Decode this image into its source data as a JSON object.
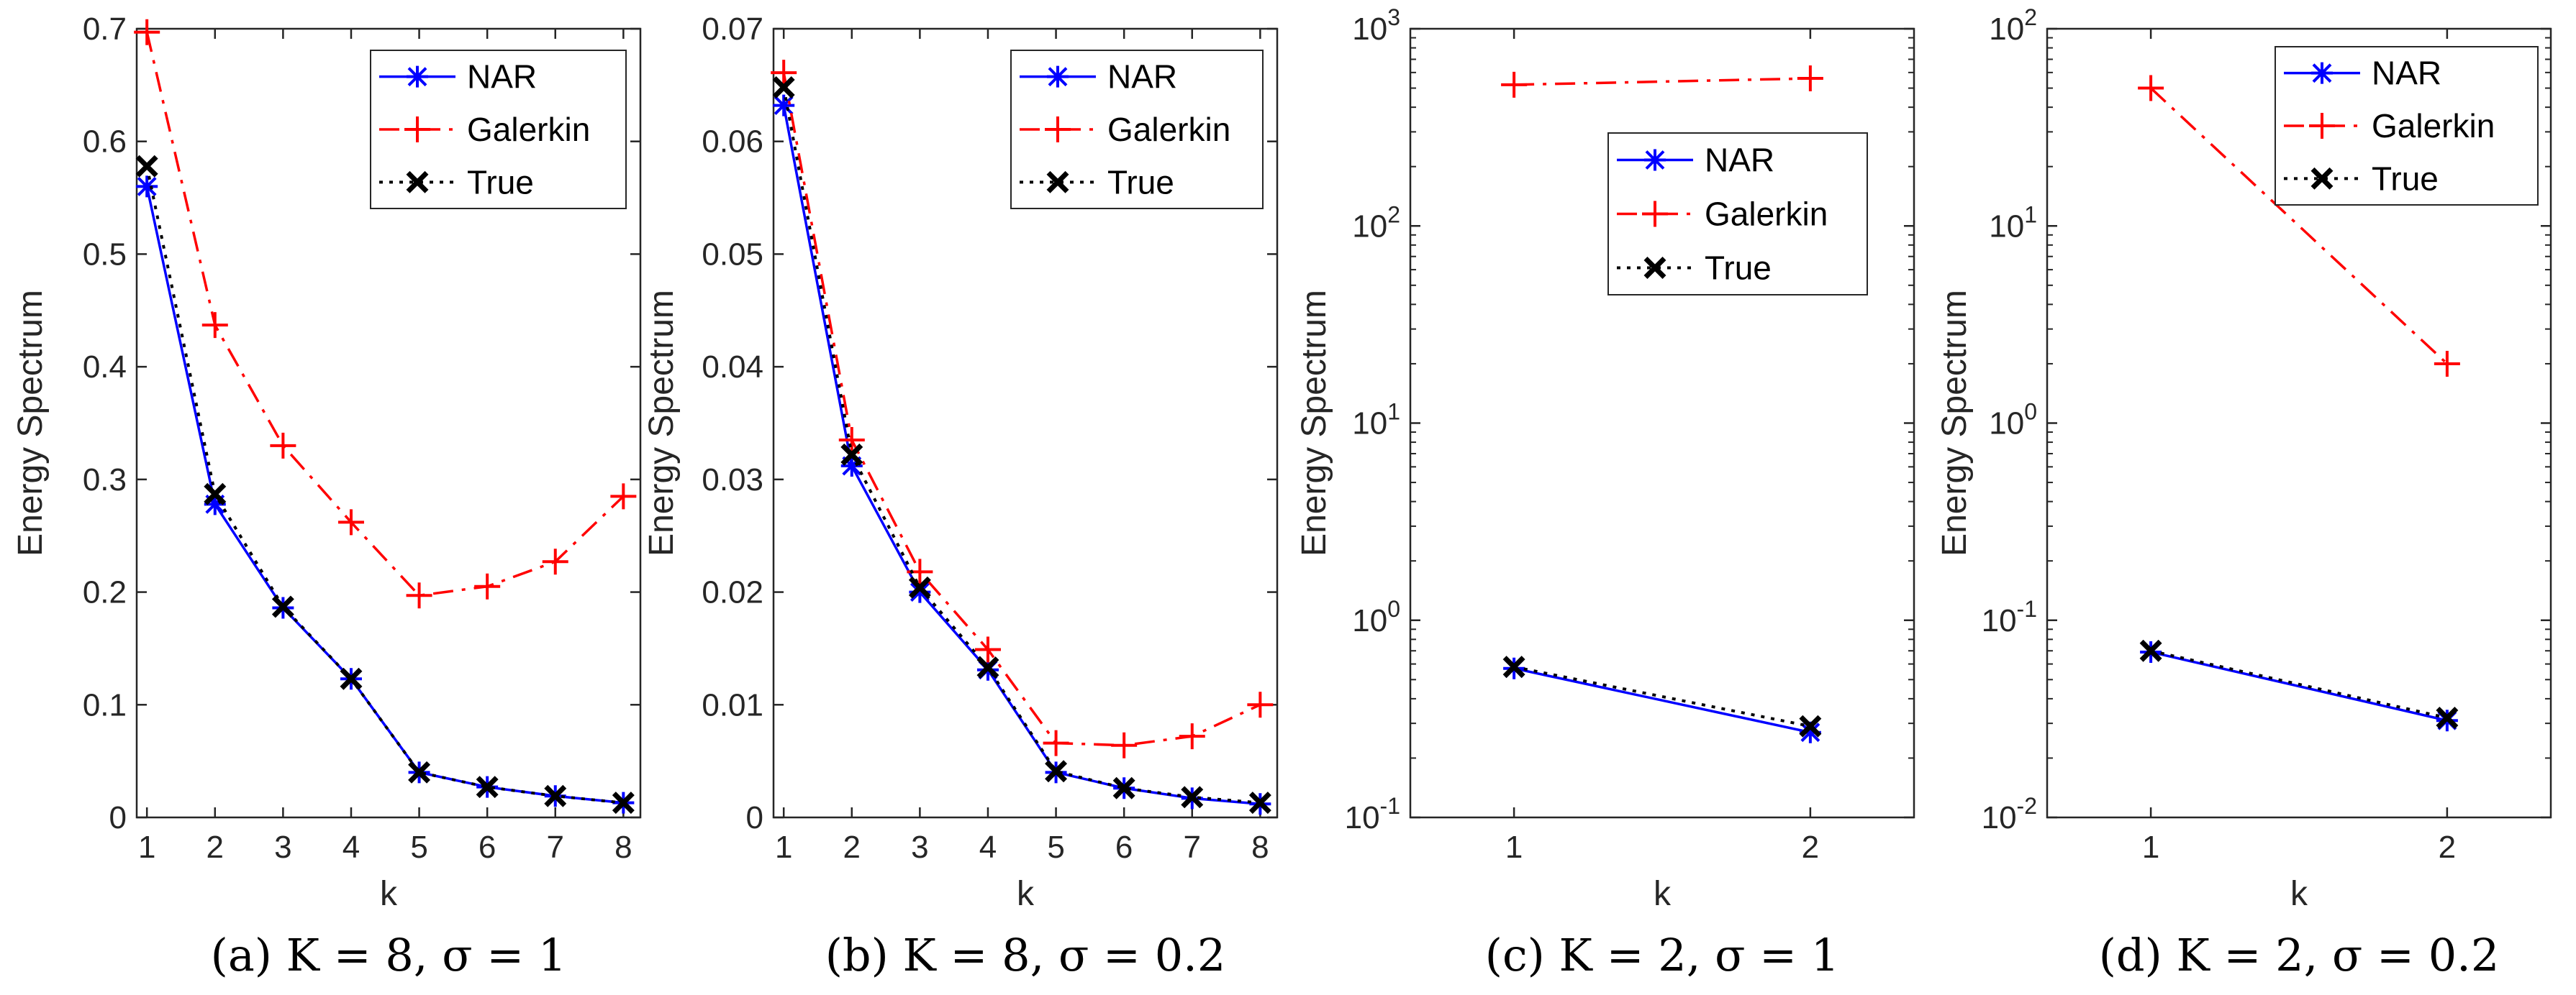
{
  "chart_data": [
    {
      "type": "line",
      "caption": "(a) K = 8, σ = 1",
      "xlabel": "k",
      "ylabel": "Energy Spectrum",
      "yscale": "linear",
      "xlim": [
        0.85,
        8.25
      ],
      "ylim": [
        0,
        0.7
      ],
      "xticks": [
        1,
        2,
        3,
        4,
        5,
        6,
        7,
        8
      ],
      "xtick_labels": [
        "1",
        "2",
        "3",
        "4",
        "5",
        "6",
        "7",
        "8"
      ],
      "yticks": [
        0,
        0.1,
        0.2,
        0.3,
        0.4,
        0.5,
        0.6,
        0.7
      ],
      "ytick_labels": [
        "0",
        "0.1",
        "0.2",
        "0.3",
        "0.4",
        "0.5",
        "0.6",
        "0.7"
      ],
      "legend_position": "top-right",
      "x": [
        1,
        2,
        3,
        4,
        5,
        6,
        7,
        8
      ],
      "series": [
        {
          "name": "NAR",
          "color": "#0000ff",
          "line": "solid",
          "marker": "asterisk",
          "values": [
            0.56,
            0.278,
            0.186,
            0.123,
            0.04,
            0.027,
            0.019,
            0.013
          ]
        },
        {
          "name": "Galerkin",
          "color": "#ff0000",
          "line": "dashdot",
          "marker": "plus",
          "values": [
            0.697,
            0.437,
            0.33,
            0.262,
            0.197,
            0.205,
            0.227,
            0.285
          ]
        },
        {
          "name": "True",
          "color": "#000000",
          "line": "dotted",
          "marker": "cross",
          "values": [
            0.578,
            0.287,
            0.187,
            0.123,
            0.04,
            0.027,
            0.019,
            0.013
          ]
        }
      ]
    },
    {
      "type": "line",
      "caption": "(b) K = 8, σ = 0.2",
      "xlabel": "k",
      "ylabel": "Energy Spectrum",
      "yscale": "linear",
      "xlim": [
        0.85,
        8.25
      ],
      "ylim": [
        0,
        0.07
      ],
      "xticks": [
        1,
        2,
        3,
        4,
        5,
        6,
        7,
        8
      ],
      "xtick_labels": [
        "1",
        "2",
        "3",
        "4",
        "5",
        "6",
        "7",
        "8"
      ],
      "yticks": [
        0,
        0.01,
        0.02,
        0.03,
        0.04,
        0.05,
        0.06,
        0.07
      ],
      "ytick_labels": [
        "0",
        "0.01",
        "0.02",
        "0.03",
        "0.04",
        "0.05",
        "0.06",
        "0.07"
      ],
      "legend_position": "top-right",
      "x": [
        1,
        2,
        3,
        4,
        5,
        6,
        7,
        8
      ],
      "series": [
        {
          "name": "NAR",
          "color": "#0000ff",
          "line": "solid",
          "marker": "asterisk",
          "values": [
            0.0632,
            0.0312,
            0.02,
            0.0131,
            0.004,
            0.0026,
            0.0017,
            0.0012
          ]
        },
        {
          "name": "Galerkin",
          "color": "#ff0000",
          "line": "dashdot",
          "marker": "plus",
          "values": [
            0.0661,
            0.0335,
            0.0218,
            0.0149,
            0.0066,
            0.0064,
            0.0072,
            0.01
          ]
        },
        {
          "name": "True",
          "color": "#000000",
          "line": "dotted",
          "marker": "cross",
          "values": [
            0.0648,
            0.0322,
            0.0204,
            0.0133,
            0.0041,
            0.0026,
            0.0018,
            0.0013
          ]
        }
      ]
    },
    {
      "type": "line",
      "caption": "(c) K = 2, σ = 1",
      "xlabel": "k",
      "ylabel": "Energy Spectrum",
      "yscale": "log",
      "xlim": [
        0.65,
        2.35
      ],
      "ylim": [
        0.1,
        1000
      ],
      "xticks": [
        1,
        2
      ],
      "xtick_labels": [
        "1",
        "2"
      ],
      "yticks": [
        0.1,
        1,
        10,
        100,
        1000
      ],
      "ytick_labels": [
        {
          "base": "10",
          "exp": "-1"
        },
        {
          "base": "10",
          "exp": "0"
        },
        {
          "base": "10",
          "exp": "1"
        },
        {
          "base": "10",
          "exp": "2"
        },
        {
          "base": "10",
          "exp": "3"
        }
      ],
      "legend_position": "upper-right",
      "x": [
        1,
        2
      ],
      "series": [
        {
          "name": "NAR",
          "color": "#0000ff",
          "line": "solid",
          "marker": "asterisk",
          "values": [
            0.57,
            0.27
          ]
        },
        {
          "name": "Galerkin",
          "color": "#ff0000",
          "line": "dashdot",
          "marker": "plus",
          "values": [
            520,
            560
          ]
        },
        {
          "name": "True",
          "color": "#000000",
          "line": "dotted",
          "marker": "cross",
          "values": [
            0.58,
            0.29
          ]
        }
      ]
    },
    {
      "type": "line",
      "caption": "(d) K = 2, σ = 0.2",
      "xlabel": "k",
      "ylabel": "Energy Spectrum",
      "yscale": "log",
      "xlim": [
        0.65,
        2.35
      ],
      "ylim": [
        0.01,
        100
      ],
      "xticks": [
        1,
        2
      ],
      "xtick_labels": [
        "1",
        "2"
      ],
      "yticks": [
        0.01,
        0.1,
        1,
        10,
        100
      ],
      "ytick_labels": [
        {
          "base": "10",
          "exp": "-2"
        },
        {
          "base": "10",
          "exp": "-1"
        },
        {
          "base": "10",
          "exp": "0"
        },
        {
          "base": "10",
          "exp": "1"
        },
        {
          "base": "10",
          "exp": "2"
        }
      ],
      "legend_position": "top-right",
      "x": [
        1,
        2
      ],
      "series": [
        {
          "name": "NAR",
          "color": "#0000ff",
          "line": "solid",
          "marker": "asterisk",
          "values": [
            0.069,
            0.031
          ]
        },
        {
          "name": "Galerkin",
          "color": "#ff0000",
          "line": "dashdot",
          "marker": "plus",
          "values": [
            50,
            2
          ]
        },
        {
          "name": "True",
          "color": "#000000",
          "line": "dotted",
          "marker": "cross",
          "values": [
            0.07,
            0.032
          ]
        }
      ]
    }
  ]
}
